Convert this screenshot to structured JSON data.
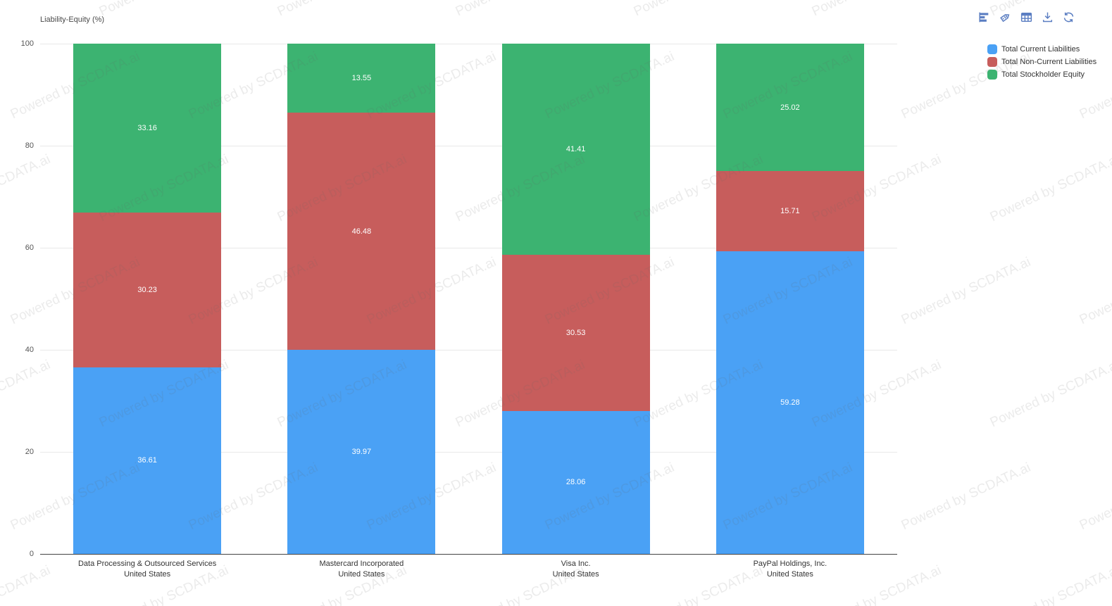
{
  "watermark": {
    "text": "Powered by SCDATA.ai"
  },
  "toolbar": {
    "buttons": [
      {
        "name": "bar-chart"
      },
      {
        "name": "tag"
      },
      {
        "name": "table"
      },
      {
        "name": "download"
      },
      {
        "name": "refresh"
      }
    ]
  },
  "chart_data": {
    "type": "bar",
    "stacked": true,
    "title": "Liability-Equity (%)",
    "ylabel": "Liability-Equity (%)",
    "ylim": [
      0,
      100
    ],
    "yticks": [
      0,
      20,
      40,
      60,
      80,
      100
    ],
    "grid": true,
    "legend_position": "top-right",
    "categories": [
      {
        "label": "Data Processing & Outsourced Services",
        "sublabel": "United States"
      },
      {
        "label": "Mastercard Incorporated",
        "sublabel": "United States"
      },
      {
        "label": "Visa Inc.",
        "sublabel": "United States"
      },
      {
        "label": "PayPal Holdings, Inc.",
        "sublabel": "United States"
      }
    ],
    "series": [
      {
        "name": "Total Current Liabilities",
        "color": "#4aa1f5",
        "values": [
          36.61,
          39.97,
          28.06,
          59.28
        ]
      },
      {
        "name": "Total Non-Current Liabilities",
        "color": "#c75d5c",
        "values": [
          30.23,
          46.48,
          30.53,
          15.71
        ]
      },
      {
        "name": "Total Stockholder Equity",
        "color": "#3cb371",
        "values": [
          33.16,
          13.55,
          41.41,
          25.02
        ]
      }
    ]
  }
}
